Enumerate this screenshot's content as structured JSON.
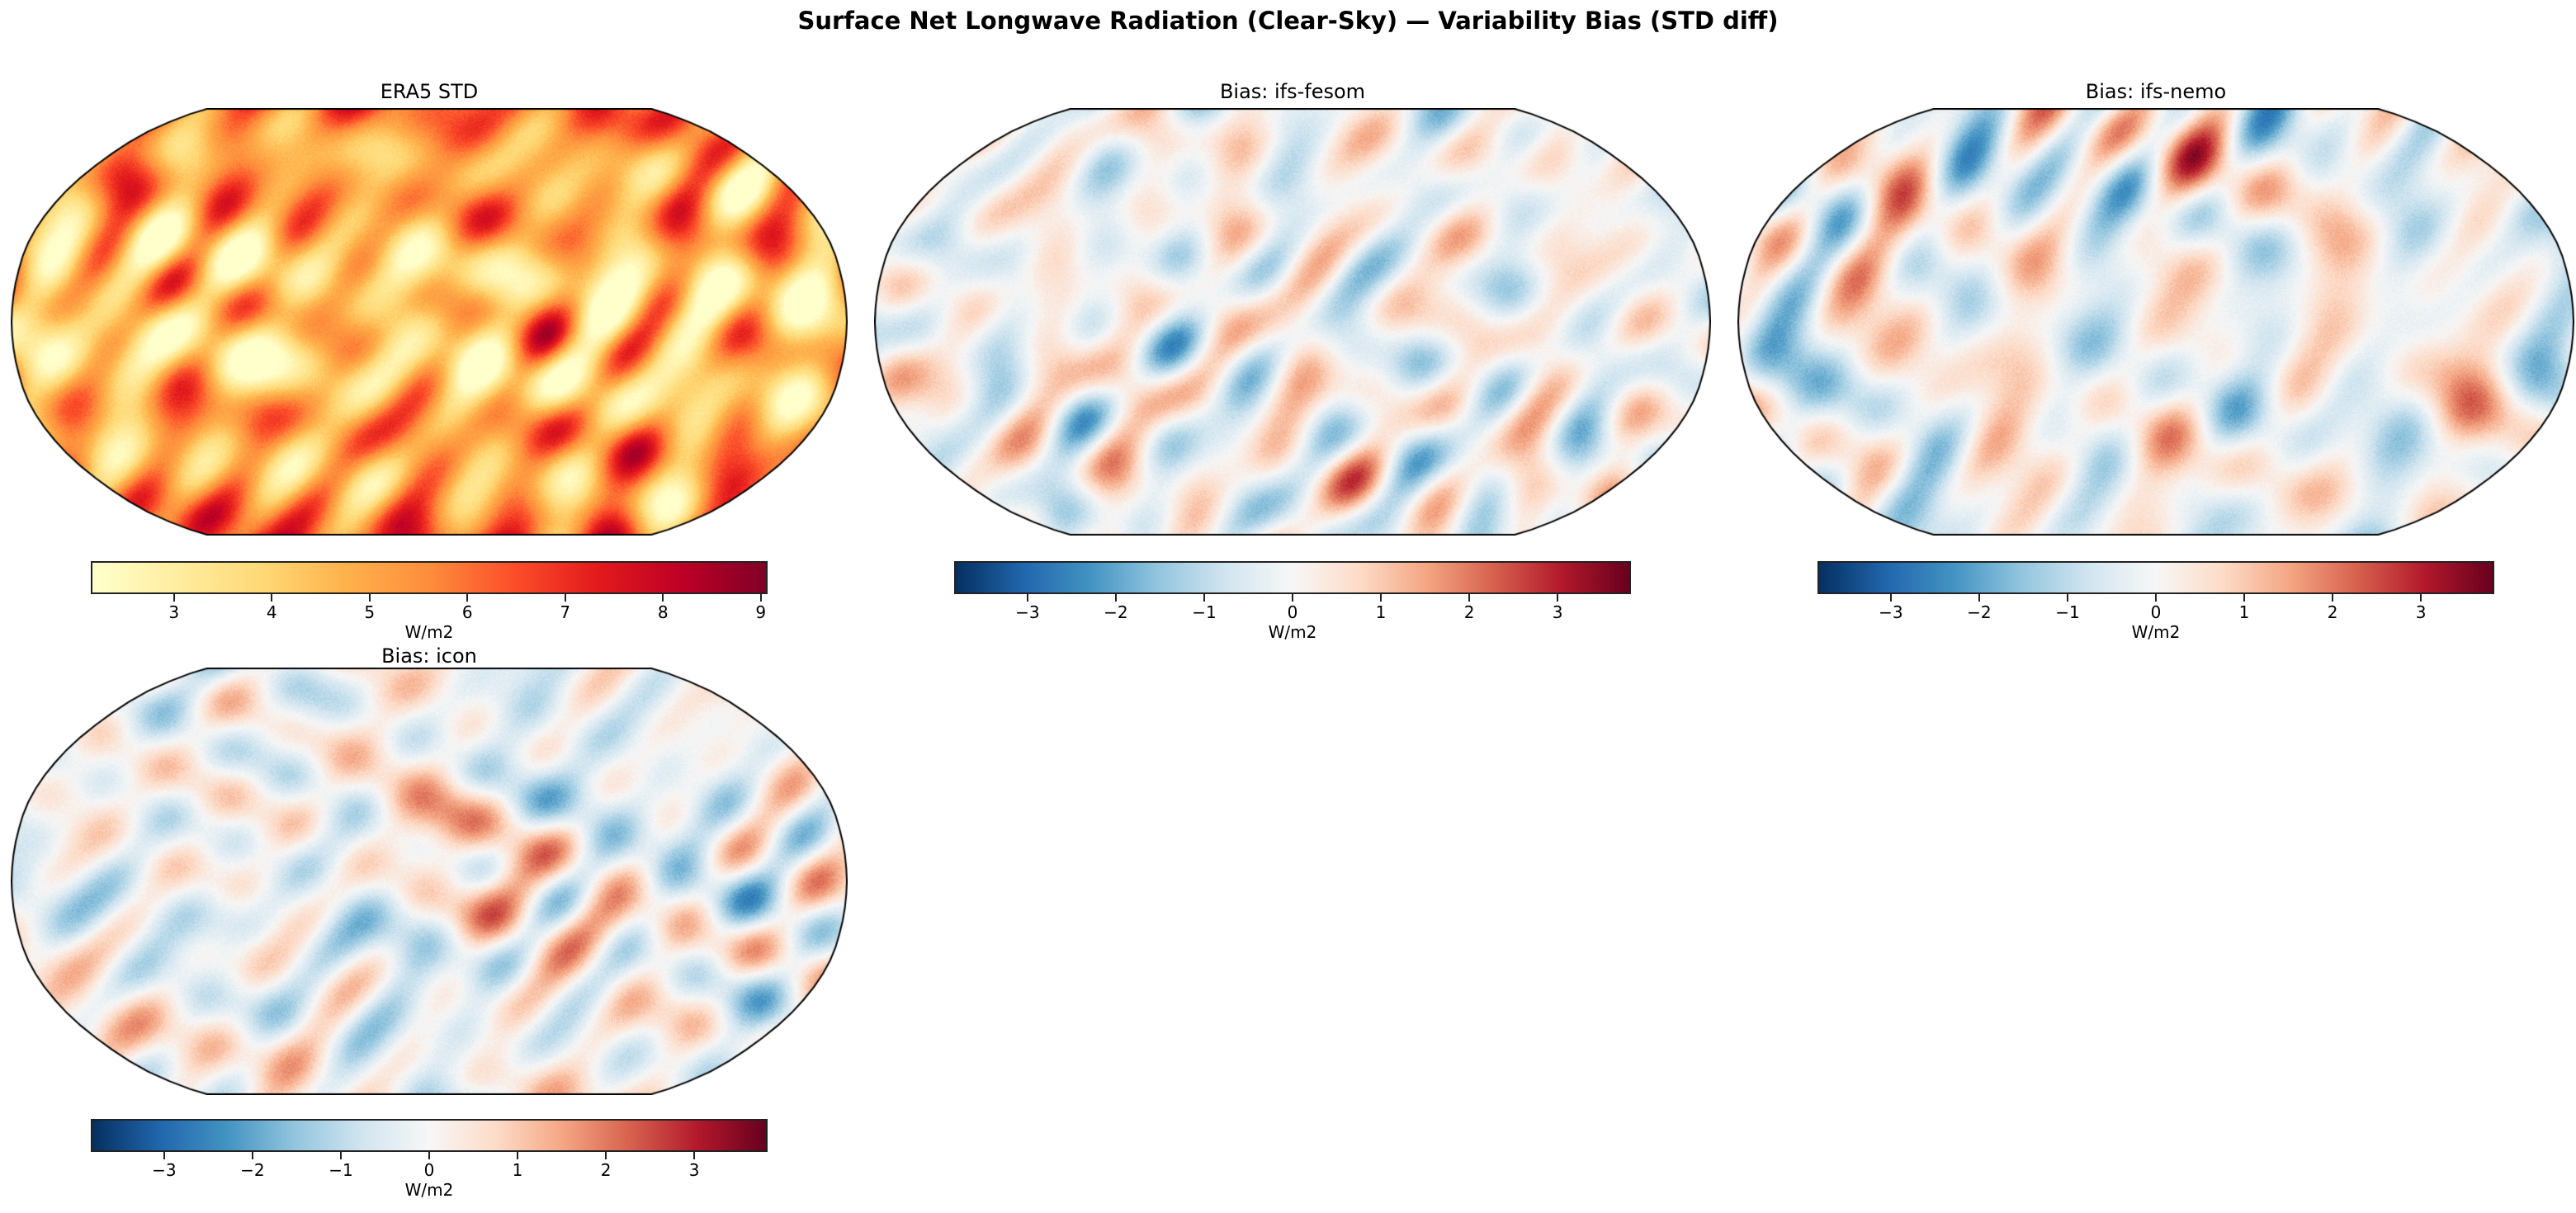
{
  "title": "Surface Net Longwave Radiation (Clear-Sky) — Variability Bias (STD diff)",
  "colors": {
    "era5_cmap": "YlOrRd",
    "bias_cmap": "RdBu_r",
    "coastline": "#000000",
    "background": "#ffffff"
  },
  "chart_data": [
    {
      "type": "heatmap",
      "projection": "Robinson",
      "title": "ERA5 STD",
      "colorbar": {
        "label": "W/m2",
        "ticks": [
          "3",
          "4",
          "5",
          "6",
          "7",
          "8",
          "9"
        ],
        "tick_values": [
          3,
          4,
          5,
          6,
          7,
          8,
          9
        ],
        "range": [
          2.15,
          9.07
        ],
        "cmap": "YlOrRd",
        "orientation": "horizontal"
      }
    },
    {
      "type": "heatmap",
      "projection": "Robinson",
      "title": "Bias: ifs-fesom",
      "colorbar": {
        "label": "W/m2",
        "ticks": [
          "−3",
          "−2",
          "−1",
          "0",
          "1",
          "2",
          "3"
        ],
        "tick_values": [
          -3,
          -2,
          -1,
          0,
          1,
          2,
          3
        ],
        "range": [
          -3.83,
          3.83
        ],
        "cmap": "RdBu_r",
        "orientation": "horizontal"
      }
    },
    {
      "type": "heatmap",
      "projection": "Robinson",
      "title": "Bias: ifs-nemo",
      "colorbar": {
        "label": "W/m2",
        "ticks": [
          "−3",
          "−2",
          "−1",
          "0",
          "1",
          "2",
          "3"
        ],
        "tick_values": [
          -3,
          -2,
          -1,
          0,
          1,
          2,
          3
        ],
        "range": [
          -3.83,
          3.83
        ],
        "cmap": "RdBu_r",
        "orientation": "horizontal"
      }
    },
    {
      "type": "heatmap",
      "projection": "Robinson",
      "title": "Bias: icon",
      "colorbar": {
        "label": "W/m2",
        "ticks": [
          "−3",
          "−2",
          "−1",
          "0",
          "1",
          "2",
          "3"
        ],
        "tick_values": [
          -3,
          -2,
          -1,
          0,
          1,
          2,
          3
        ],
        "range": [
          -3.83,
          3.83
        ],
        "cmap": "RdBu_r",
        "orientation": "horizontal"
      }
    }
  ]
}
